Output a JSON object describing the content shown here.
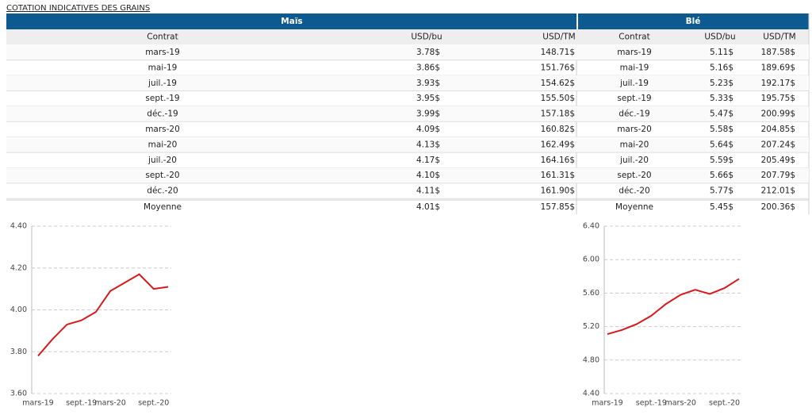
{
  "title": "COTATION INDICATIVES DES GRAINS",
  "table": {
    "groups": [
      "Maïs",
      "Blé"
    ],
    "headers": [
      "Contrat",
      "USD/bu",
      "USD/TM",
      "Contrat",
      "USD/bu",
      "USD/TM"
    ],
    "rows": [
      [
        "mars-19",
        "3.78$",
        "148.71$",
        "mars-19",
        "5.11$",
        "187.58$"
      ],
      [
        "mai-19",
        "3.86$",
        "151.76$",
        "mai-19",
        "5.16$",
        "189.69$"
      ],
      [
        "juil.-19",
        "3.93$",
        "154.62$",
        "juil.-19",
        "5.23$",
        "192.17$"
      ],
      [
        "sept.-19",
        "3.95$",
        "155.50$",
        "sept.-19",
        "5.33$",
        "195.75$"
      ],
      [
        "déc.-19",
        "3.99$",
        "157.18$",
        "déc.-19",
        "5.47$",
        "200.99$"
      ],
      [
        "mars-20",
        "4.09$",
        "160.82$",
        "mars-20",
        "5.58$",
        "204.85$"
      ],
      [
        "mai-20",
        "4.13$",
        "162.49$",
        "mai-20",
        "5.64$",
        "207.24$"
      ],
      [
        "juil.-20",
        "4.17$",
        "164.16$",
        "juil.-20",
        "5.59$",
        "205.49$"
      ],
      [
        "sept.-20",
        "4.10$",
        "161.31$",
        "sept.-20",
        "5.66$",
        "207.79$"
      ],
      [
        "déc.-20",
        "4.11$",
        "161.90$",
        "déc.-20",
        "5.77$",
        "212.01$"
      ]
    ],
    "average": [
      "Moyenne",
      "4.01$",
      "157.85$",
      "Moyenne",
      "5.45$",
      "200.36$"
    ]
  },
  "chart_data": [
    {
      "type": "line",
      "color": "#d7191c",
      "grid": true,
      "categories": [
        "mars-19",
        null,
        null,
        "sept.-19",
        null,
        "mars-20",
        null,
        null,
        "sept.-20",
        null
      ],
      "values": [
        3.78,
        3.86,
        3.93,
        3.95,
        3.99,
        4.09,
        4.13,
        4.17,
        4.1,
        4.11
      ],
      "ylim": [
        3.6,
        4.4
      ],
      "yticks": [
        {
          "value": 3.6,
          "label": "3.60"
        },
        {
          "value": 3.8,
          "label": "3.80"
        },
        {
          "value": 4.0,
          "label": "4.00"
        },
        {
          "value": 4.2,
          "label": "4.20"
        },
        {
          "value": 4.4,
          "label": "4.40"
        }
      ]
    },
    {
      "type": "line",
      "color": "#d7191c",
      "grid": true,
      "categories": [
        "mars-19",
        null,
        null,
        "sept.-19",
        null,
        "mars-20",
        null,
        null,
        "sept.-20",
        null
      ],
      "values": [
        5.11,
        5.16,
        5.23,
        5.33,
        5.47,
        5.58,
        5.64,
        5.59,
        5.66,
        5.77
      ],
      "ylim": [
        4.4,
        6.4
      ],
      "yticks": [
        {
          "value": 4.4,
          "label": "4.40"
        },
        {
          "value": 4.8,
          "label": "4.80"
        },
        {
          "value": 5.2,
          "label": "5.20"
        },
        {
          "value": 5.6,
          "label": "5.60"
        },
        {
          "value": 6.0,
          "label": "6.00"
        },
        {
          "value": 6.4,
          "label": "6.40"
        }
      ]
    }
  ]
}
